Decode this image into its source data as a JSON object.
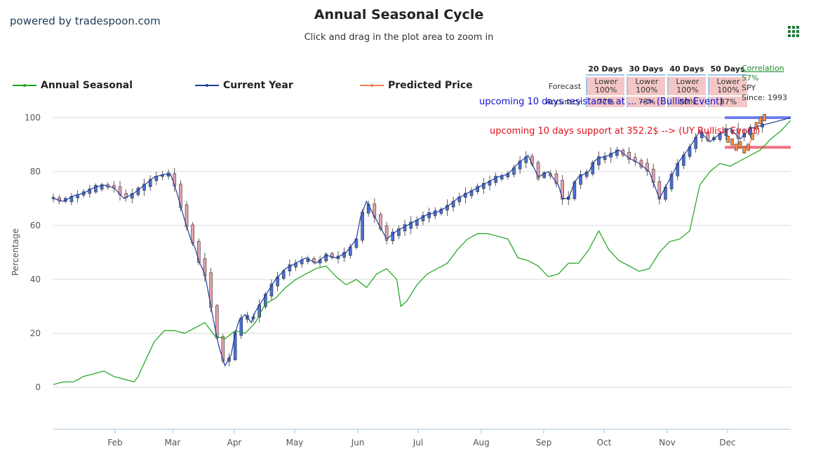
{
  "header": {
    "powered_by": "powered by tradespoon.com",
    "title": "Annual Seasonal Cycle",
    "subtitle": "Click and drag in the plot area to zoom in"
  },
  "menu_icon": "grid-menu-icon",
  "legend": [
    {
      "label": "Annual Seasonal",
      "color": "#1aa31a"
    },
    {
      "label": "Current Year",
      "color": "#1f3d9e"
    },
    {
      "label": "Predicted Price",
      "color": "#f07e52"
    }
  ],
  "forecast_table": {
    "headers": [
      "20 Days",
      "30 Days",
      "40 Days",
      "50 Days"
    ],
    "rows": [
      {
        "label": "Forecast",
        "cells": [
          {
            "line1": "Lower",
            "line2": "100%"
          },
          {
            "line1": "Lower",
            "line2": "100%"
          },
          {
            "line1": "Lower",
            "line2": "100%"
          },
          {
            "line1": "Lower",
            "line2": "100%"
          }
        ]
      },
      {
        "label": "Accuracy",
        "cells": [
          {
            "line1": "77%",
            "line2": ""
          },
          {
            "line1": "78%",
            "line2": ""
          },
          {
            "line1": "80%",
            "line2": ""
          },
          {
            "line1": "87%",
            "line2": ""
          }
        ]
      }
    ]
  },
  "correlation": {
    "label": "Correlation",
    "value": "57%",
    "symbol": "SPY",
    "since": "Since: 1993"
  },
  "annotations": {
    "resistance": "upcoming 10 days resistance at ... --> (Bullish Event)",
    "support": "upcoming 10 days support at 352.2$ --> (UY Bullish Event)"
  },
  "colors": {
    "seasonal": "#1aa31a",
    "current": "#1f3d9e",
    "predicted": "#f07e52",
    "up": "#4a6fd6",
    "down": "#e8a0a8",
    "resistance": "#6f7ff0",
    "support": "#f07080"
  },
  "chart_data": {
    "type": "line",
    "ylabel": "Percentage",
    "ylim": [
      -15,
      100
    ],
    "yticks": [
      0,
      20,
      40,
      60,
      80,
      100
    ],
    "months": [
      "Feb",
      "Mar",
      "Apr",
      "May",
      "Jun",
      "Jul",
      "Aug",
      "Sep",
      "Oct",
      "Nov",
      "Dec"
    ],
    "xlim_days": [
      0,
      365
    ],
    "series": [
      {
        "name": "Annual Seasonal",
        "x": [
          0,
          5,
          10,
          15,
          20,
          25,
          30,
          35,
          40,
          42,
          45,
          50,
          55,
          60,
          65,
          70,
          75,
          80,
          85,
          90,
          95,
          100,
          105,
          110,
          115,
          120,
          125,
          130,
          135,
          140,
          145,
          150,
          155,
          160,
          165,
          170,
          172,
          175,
          180,
          185,
          190,
          195,
          200,
          205,
          210,
          215,
          220,
          225,
          230,
          235,
          240,
          245,
          250,
          255,
          260,
          265,
          270,
          275,
          280,
          285,
          290,
          295,
          300,
          305,
          310,
          315,
          320,
          325,
          330,
          335,
          340,
          345,
          350,
          355,
          360,
          365
        ],
        "values": [
          1,
          2,
          2,
          4,
          5,
          6,
          4,
          3,
          2,
          4,
          9,
          17,
          21,
          21,
          20,
          22,
          24,
          19,
          18,
          21,
          20,
          24,
          31,
          33,
          37,
          40,
          42,
          44,
          45,
          41,
          38,
          40,
          37,
          42,
          44,
          40,
          30,
          32,
          38,
          42,
          44,
          46,
          51,
          55,
          57,
          57,
          56,
          55,
          48,
          47,
          45,
          41,
          42,
          46,
          46,
          51,
          58,
          51,
          47,
          45,
          43,
          44,
          50,
          54,
          55,
          58,
          75,
          80,
          83,
          82,
          84,
          86,
          88,
          92,
          95,
          99
        ]
      },
      {
        "name": "Current Year",
        "x": [
          0,
          5,
          10,
          15,
          20,
          25,
          30,
          35,
          40,
          45,
          50,
          55,
          58,
          60,
          62,
          65,
          68,
          70,
          72,
          75,
          78,
          80,
          82,
          85,
          88,
          90,
          92,
          95,
          98,
          100,
          105,
          110,
          115,
          120,
          125,
          130,
          135,
          140,
          145,
          150,
          152,
          155,
          160,
          165,
          170,
          175,
          180,
          185,
          190,
          195,
          200,
          205,
          210,
          215,
          220,
          225,
          230,
          235,
          240,
          245,
          250,
          252,
          255,
          258,
          260,
          265,
          268,
          270,
          275,
          280,
          285,
          290,
          295,
          300,
          305,
          310,
          315,
          320,
          325,
          330,
          335,
          340,
          345,
          350,
          355,
          360,
          365
        ],
        "values": [
          70,
          69,
          71,
          72,
          74,
          75,
          74,
          70,
          72,
          75,
          78,
          79,
          79,
          75,
          70,
          62,
          55,
          52,
          47,
          42,
          30,
          22,
          15,
          8,
          12,
          20,
          25,
          27,
          24,
          28,
          34,
          40,
          44,
          46,
          48,
          46,
          49,
          48,
          50,
          55,
          63,
          69,
          62,
          55,
          58,
          60,
          62,
          64,
          65,
          67,
          70,
          72,
          74,
          76,
          78,
          79,
          83,
          86,
          78,
          80,
          75,
          70,
          70,
          76,
          78,
          80,
          84,
          85,
          86,
          88,
          85,
          83,
          80,
          70,
          77,
          84,
          89,
          95,
          91,
          94,
          96,
          92,
          96,
          97,
          98,
          99,
          100
        ]
      },
      {
        "name": "Predicted Price",
        "x": [
          334,
          336,
          338,
          340,
          342,
          344,
          346,
          348,
          350,
          352
        ],
        "values": [
          92,
          91,
          89,
          90,
          88,
          89,
          93,
          97,
          99,
          100
        ]
      }
    ],
    "resistance_level": 100,
    "support_level": 89,
    "grid": true
  }
}
